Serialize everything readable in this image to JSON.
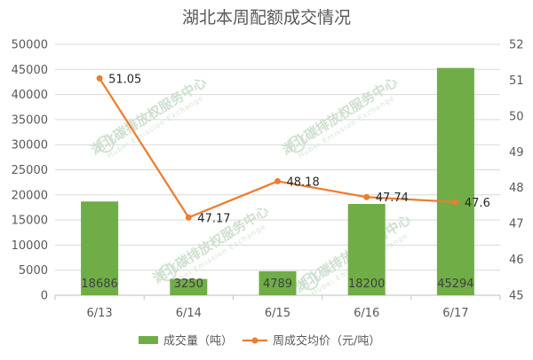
{
  "chart_data": {
    "type": "bar",
    "title": "湖北本周配额成交情况",
    "categories": [
      "6/13",
      "6/14",
      "6/15",
      "6/16",
      "6/17"
    ],
    "series": [
      {
        "name": "成交量（吨）",
        "type": "bar",
        "axis": "left",
        "color": "#70ad47",
        "values": [
          18686,
          3250,
          4789,
          18200,
          45294
        ],
        "labels": [
          "18686",
          "3250",
          "4789",
          "18200",
          "45294"
        ]
      },
      {
        "name": "周成交均价（元/吨）",
        "type": "line",
        "axis": "right",
        "color": "#ed7d31",
        "values": [
          51.05,
          47.17,
          48.18,
          47.74,
          47.6
        ],
        "labels": [
          "51.05",
          "47.17",
          "48.18",
          "47.74",
          "47.6"
        ]
      }
    ],
    "y_left": {
      "lim": [
        0,
        50000
      ],
      "ticks": [
        "0",
        "5000",
        "10000",
        "15000",
        "20000",
        "25000",
        "30000",
        "35000",
        "40000",
        "45000",
        "50000"
      ]
    },
    "y_right": {
      "lim": [
        45,
        52
      ],
      "ticks": [
        "45",
        "46",
        "47",
        "48",
        "49",
        "50",
        "51",
        "52"
      ]
    },
    "grid": true,
    "legend_position": "bottom"
  },
  "watermark": {
    "text": "湖北碳排放权服务中心",
    "subtext": "Hubei Emission Exchange"
  }
}
